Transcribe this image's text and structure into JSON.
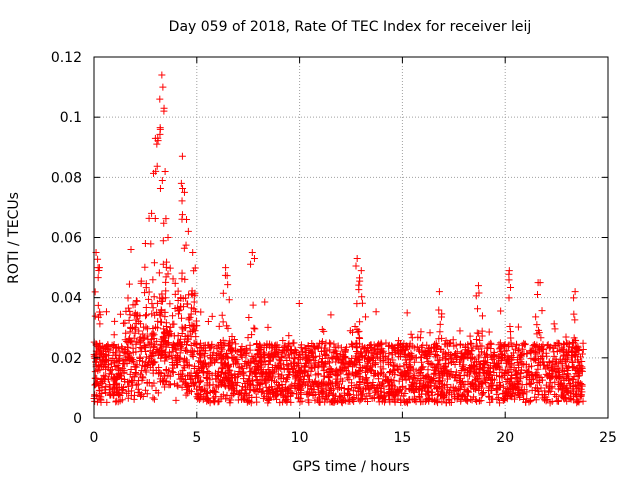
{
  "chart_data": {
    "type": "scatter",
    "title": "Day 059 of 2018, Rate Of TEC Index for receiver leij",
    "xlabel": "GPS time / hours",
    "ylabel": "ROTI / TECUs",
    "xlim": [
      0,
      25
    ],
    "ylim": [
      0,
      0.12
    ],
    "xticks": [
      0,
      5,
      10,
      15,
      20,
      25
    ],
    "yticks": [
      0,
      0.02,
      0.04,
      0.06,
      0.08,
      0.1,
      0.12
    ],
    "xtick_labels": [
      "0",
      "5",
      "10",
      "15",
      "20",
      "25"
    ],
    "ytick_labels": [
      "0",
      "0.02",
      "0.04",
      "0.06",
      "0.08",
      "0.1",
      "0.12"
    ],
    "grid": true,
    "marker": "+",
    "series": [
      {
        "name": "ROTI",
        "color": "#ff0000",
        "x_range": [
          0,
          23.8
        ],
        "typical_min": 0.005,
        "typical_max": 0.025,
        "peaks": [
          {
            "x": 0.1,
            "y": 0.055
          },
          {
            "x": 0.2,
            "y": 0.05
          },
          {
            "x": 1.8,
            "y": 0.056
          },
          {
            "x": 2.5,
            "y": 0.058
          },
          {
            "x": 2.8,
            "y": 0.068
          },
          {
            "x": 3.0,
            "y": 0.082
          },
          {
            "x": 3.1,
            "y": 0.093
          },
          {
            "x": 3.2,
            "y": 0.106
          },
          {
            "x": 3.3,
            "y": 0.114
          },
          {
            "x": 3.35,
            "y": 0.11
          },
          {
            "x": 3.4,
            "y": 0.102
          },
          {
            "x": 3.6,
            "y": 0.06
          },
          {
            "x": 4.3,
            "y": 0.087
          },
          {
            "x": 4.4,
            "y": 0.075
          },
          {
            "x": 4.5,
            "y": 0.066
          },
          {
            "x": 4.8,
            "y": 0.055
          },
          {
            "x": 6.4,
            "y": 0.05
          },
          {
            "x": 7.7,
            "y": 0.055
          },
          {
            "x": 12.8,
            "y": 0.053
          },
          {
            "x": 13.0,
            "y": 0.049
          },
          {
            "x": 16.8,
            "y": 0.042
          },
          {
            "x": 18.7,
            "y": 0.044
          },
          {
            "x": 20.2,
            "y": 0.049
          },
          {
            "x": 21.6,
            "y": 0.045
          },
          {
            "x": 23.4,
            "y": 0.042
          }
        ]
      }
    ]
  }
}
